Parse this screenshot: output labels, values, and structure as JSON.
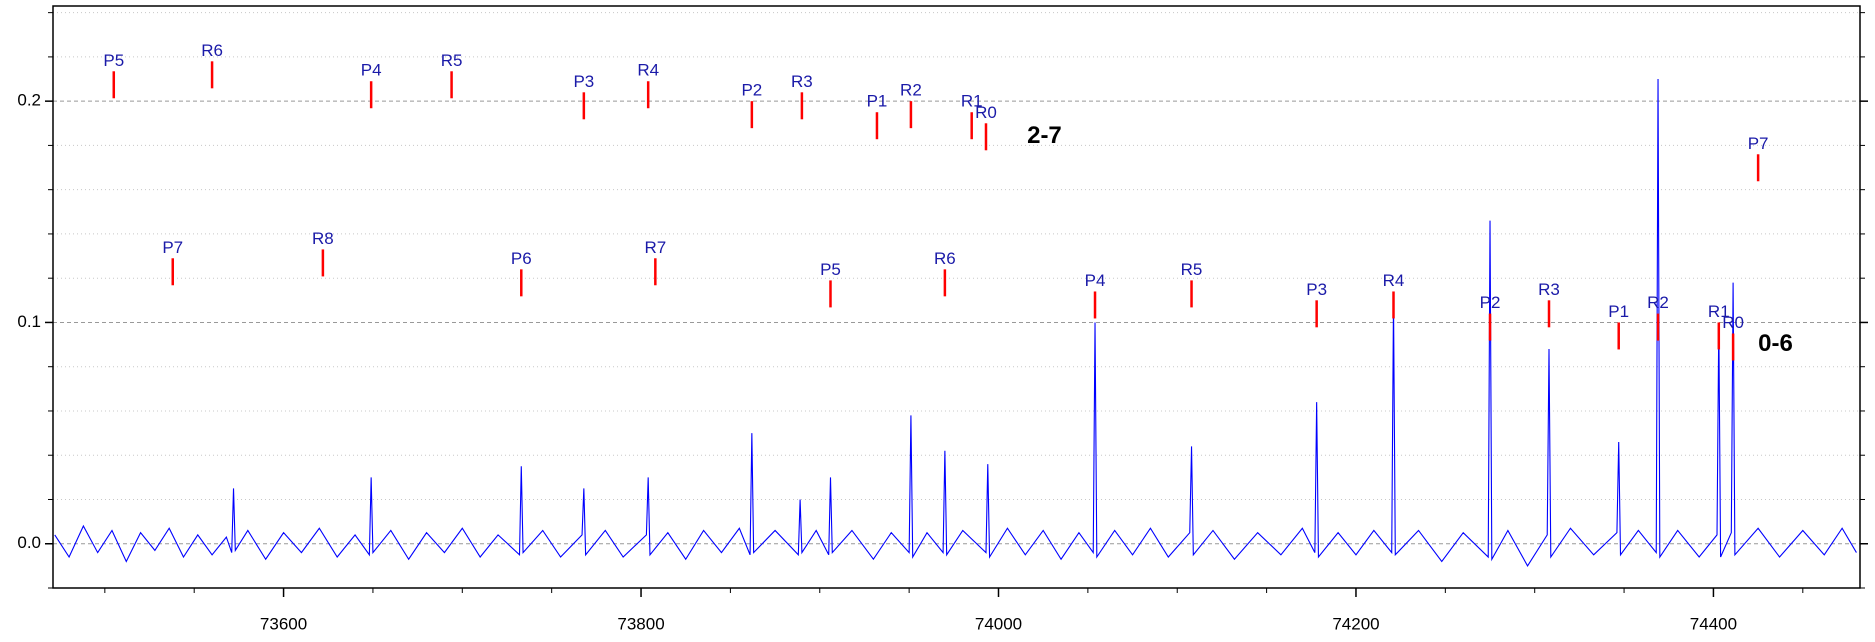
{
  "chart_data": {
    "type": "line",
    "xlim": [
      73471,
      74482
    ],
    "ylim": [
      -0.02,
      0.243
    ],
    "xticks": [
      73600,
      73800,
      74000,
      74200,
      74400
    ],
    "xminorticks": [
      73500,
      73550,
      73650,
      73700,
      73750,
      73850,
      73900,
      73950,
      74050,
      74100,
      74150,
      74250,
      74300,
      74350,
      74450
    ],
    "yticks": [
      {
        "value": 0,
        "label": "0.0"
      },
      {
        "value": 0.1,
        "label": "0.1"
      },
      {
        "value": 0.2,
        "label": "0.2"
      }
    ],
    "yminorticks": [
      -0.02,
      0.02,
      0.04,
      0.06,
      0.08,
      0.12,
      0.14,
      0.16,
      0.18,
      0.22,
      0.24
    ],
    "grid": true,
    "marker_color": "#ff0000",
    "series": [
      {
        "color": "#0000ff",
        "x": [
          73472,
          73480,
          73488,
          73496,
          73504,
          73512,
          73520,
          73528,
          73536,
          73544,
          73552,
          73560,
          73568,
          73571,
          73572,
          73573,
          73580,
          73590,
          73600,
          73610,
          73620,
          73630,
          73640,
          73648,
          73649,
          73650,
          73660,
          73670,
          73680,
          73690,
          73700,
          73710,
          73720,
          73732,
          73733,
          73734,
          73745,
          73755,
          73767,
          73768,
          73769,
          73780,
          73790,
          73803,
          73804,
          73805,
          73815,
          73825,
          73835,
          73845,
          73855,
          73861,
          73862,
          73863,
          73875,
          73888,
          73889,
          73890,
          73898,
          73905,
          73906,
          73907,
          73918,
          73930,
          73940,
          73950,
          73951,
          73952,
          73960,
          73969,
          73970,
          73971,
          73980,
          73993,
          73994,
          73995,
          74005,
          74015,
          74025,
          74035,
          74045,
          74053,
          74054,
          74055,
          74065,
          74075,
          74085,
          74095,
          74107,
          74108,
          74109,
          74120,
          74132,
          74145,
          74158,
          74170,
          74177,
          74178,
          74179,
          74190,
          74200,
          74210,
          74220,
          74221,
          74222,
          74235,
          74248,
          74260,
          74274,
          74275,
          74276,
          74285,
          74296,
          74307,
          74308,
          74309,
          74320,
          74333,
          74346,
          74347,
          74348,
          74358,
          74368,
          74369,
          74370,
          74380,
          74392,
          74402,
          74403,
          74404,
          74410,
          74411,
          74412,
          74425,
          74437,
          74450,
          74462,
          74472,
          74480
        ],
        "values": [
          0.004,
          -0.006,
          0.008,
          -0.004,
          0.006,
          -0.008,
          0.005,
          -0.003,
          0.007,
          -0.006,
          0.004,
          -0.005,
          0.003,
          -0.004,
          0.025,
          -0.003,
          0.006,
          -0.007,
          0.005,
          -0.004,
          0.007,
          -0.006,
          0.004,
          -0.005,
          0.03,
          -0.004,
          0.006,
          -0.007,
          0.005,
          -0.004,
          0.007,
          -0.006,
          0.004,
          -0.005,
          0.035,
          -0.004,
          0.006,
          -0.006,
          0.004,
          0.025,
          -0.005,
          0.006,
          -0.006,
          0.004,
          0.03,
          -0.005,
          0.005,
          -0.007,
          0.006,
          -0.004,
          0.007,
          -0.005,
          0.05,
          -0.004,
          0.006,
          -0.005,
          0.02,
          -0.004,
          0.006,
          -0.005,
          0.03,
          -0.004,
          0.006,
          -0.007,
          0.005,
          -0.004,
          0.058,
          -0.006,
          0.005,
          -0.004,
          0.042,
          -0.005,
          0.006,
          -0.004,
          0.036,
          -0.006,
          0.007,
          -0.005,
          0.006,
          -0.007,
          0.005,
          -0.004,
          0.1,
          -0.006,
          0.006,
          -0.005,
          0.007,
          -0.006,
          0.005,
          0.044,
          -0.005,
          0.006,
          -0.007,
          0.005,
          -0.005,
          0.007,
          -0.004,
          0.064,
          -0.006,
          0.005,
          -0.005,
          0.006,
          -0.004,
          0.11,
          -0.005,
          0.006,
          -0.008,
          0.005,
          -0.006,
          0.146,
          -0.007,
          0.006,
          -0.01,
          0.004,
          0.088,
          -0.006,
          0.007,
          -0.005,
          0.005,
          0.046,
          -0.005,
          0.006,
          -0.004,
          0.21,
          -0.006,
          0.006,
          -0.006,
          0.004,
          0.1,
          -0.006,
          0.005,
          0.118,
          -0.005,
          0.007,
          -0.006,
          0.006,
          -0.005,
          0.007,
          -0.004
        ]
      }
    ],
    "annotations": [
      {
        "text": "P5",
        "x": 73505,
        "y": 0.2135
      },
      {
        "text": "R6",
        "x": 73560,
        "y": 0.218
      },
      {
        "text": "P4",
        "x": 73649,
        "y": 0.209
      },
      {
        "text": "R5",
        "x": 73694,
        "y": 0.2135
      },
      {
        "text": "P3",
        "x": 73768,
        "y": 0.204
      },
      {
        "text": "R4",
        "x": 73804,
        "y": 0.209
      },
      {
        "text": "P2",
        "x": 73862,
        "y": 0.2
      },
      {
        "text": "R3",
        "x": 73890,
        "y": 0.204
      },
      {
        "text": "P1",
        "x": 73932,
        "y": 0.195
      },
      {
        "text": "R2",
        "x": 73951,
        "y": 0.2
      },
      {
        "text": "R1",
        "x": 73985,
        "y": 0.195
      },
      {
        "text": "R0",
        "x": 73993,
        "y": 0.19
      },
      {
        "text": "P7",
        "x": 74425,
        "y": 0.176
      },
      {
        "text": "P7",
        "x": 73538,
        "y": 0.129
      },
      {
        "text": "R8",
        "x": 73622,
        "y": 0.133
      },
      {
        "text": "P6",
        "x": 73733,
        "y": 0.124
      },
      {
        "text": "R7",
        "x": 73808,
        "y": 0.129
      },
      {
        "text": "P5",
        "x": 73906,
        "y": 0.119
      },
      {
        "text": "R6",
        "x": 73970,
        "y": 0.124
      },
      {
        "text": "P4",
        "x": 74054,
        "y": 0.114
      },
      {
        "text": "R5",
        "x": 74108,
        "y": 0.119
      },
      {
        "text": "P3",
        "x": 74178,
        "y": 0.11
      },
      {
        "text": "R4",
        "x": 74221,
        "y": 0.114
      },
      {
        "text": "P2",
        "x": 74275,
        "y": 0.104
      },
      {
        "text": "R3",
        "x": 74308,
        "y": 0.11
      },
      {
        "text": "P1",
        "x": 74347,
        "y": 0.1
      },
      {
        "text": "R2",
        "x": 74369,
        "y": 0.104
      },
      {
        "text": "R1",
        "x": 74403,
        "y": 0.1
      },
      {
        "text": "R0",
        "x": 74411,
        "y": 0.095
      }
    ],
    "group_labels": [
      {
        "text": "2-7",
        "x": 74016,
        "y": 0.184
      },
      {
        "text": "0-6",
        "x": 74425,
        "y": 0.09
      }
    ]
  }
}
